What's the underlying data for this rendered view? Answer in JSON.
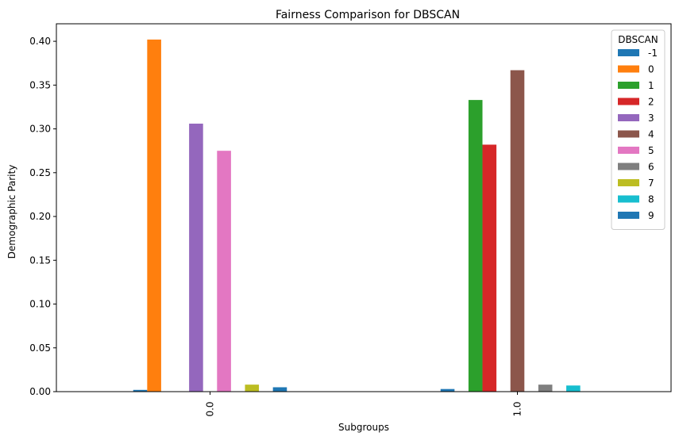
{
  "chart_data": {
    "type": "bar",
    "title": "Fairness Comparison for DBSCAN",
    "xlabel": "Subgroups",
    "ylabel": "Demographic Parity",
    "categories": [
      "0.0",
      "1.0"
    ],
    "ylim": [
      0,
      0.42
    ],
    "yticks": [
      "0.00",
      "0.05",
      "0.10",
      "0.15",
      "0.20",
      "0.25",
      "0.30",
      "0.35",
      "0.40"
    ],
    "grid": false,
    "legend": {
      "title": "DBSCAN",
      "placement": "top-right"
    },
    "series": [
      {
        "name": "-1",
        "color": "#1f77b4",
        "values": [
          0.002,
          0.003
        ]
      },
      {
        "name": "0",
        "color": "#ff7f0e",
        "values": [
          0.402,
          0.0
        ]
      },
      {
        "name": "1",
        "color": "#2ca02c",
        "values": [
          0.0,
          0.333
        ]
      },
      {
        "name": "2",
        "color": "#d62728",
        "values": [
          0.0,
          0.282
        ]
      },
      {
        "name": "3",
        "color": "#9467bd",
        "values": [
          0.306,
          0.0
        ]
      },
      {
        "name": "4",
        "color": "#8c564b",
        "values": [
          0.0,
          0.367
        ]
      },
      {
        "name": "5",
        "color": "#e377c2",
        "values": [
          0.275,
          0.0
        ]
      },
      {
        "name": "6",
        "color": "#7f7f7f",
        "values": [
          0.0,
          0.008
        ]
      },
      {
        "name": "7",
        "color": "#bcbd22",
        "values": [
          0.008,
          0.0
        ]
      },
      {
        "name": "8",
        "color": "#17becf",
        "values": [
          0.0,
          0.007
        ]
      },
      {
        "name": "9",
        "color": "#1f77b4",
        "values": [
          0.005,
          0.0
        ]
      }
    ]
  }
}
